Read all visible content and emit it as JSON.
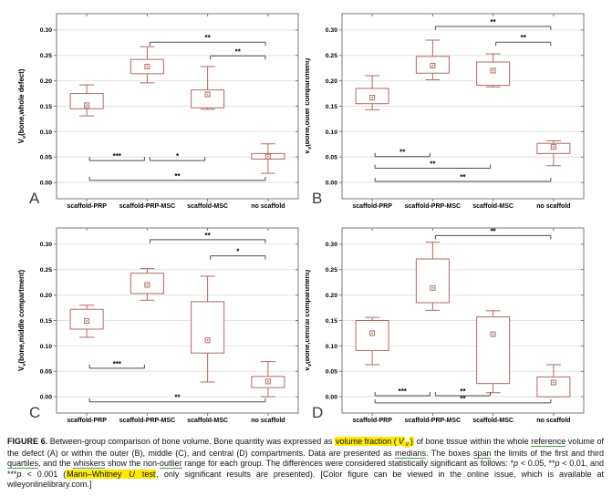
{
  "colors": {
    "box": "#b16a66",
    "grid": "#e4e4e4",
    "frame": "#7a7a7a",
    "bracket": "#4d4d4d",
    "text": "#000000",
    "highlight": "#ffe900",
    "underline": "#3da144",
    "panel_letter": "#3a3a3a"
  },
  "chart_data": [
    {
      "panel": "A",
      "type": "box",
      "grid": "horizontal",
      "ylabel": {
        "base": "V",
        "sub": "v",
        "rest": "(bone,whole defect)"
      },
      "categories": [
        "scaffold-PRP",
        "scaffold-PRP-MSC",
        "scaffold-MSC",
        "no scaffold"
      ],
      "ylim": [
        -0.032,
        0.332
      ],
      "yticks": [
        0.0,
        0.05,
        0.1,
        0.15,
        0.2,
        0.25,
        0.3
      ],
      "median_marker": "open-square",
      "boxes": [
        {
          "whisker_low": 0.131,
          "q1": 0.145,
          "median": 0.152,
          "q3": 0.175,
          "whisker_high": 0.192
        },
        {
          "whisker_low": 0.196,
          "q1": 0.214,
          "median": 0.228,
          "q3": 0.242,
          "whisker_high": 0.267
        },
        {
          "whisker_low": 0.144,
          "q1": 0.147,
          "median": 0.173,
          "q3": 0.182,
          "whisker_high": 0.228
        },
        {
          "whisker_low": 0.018,
          "q1": 0.046,
          "median": 0.051,
          "q3": 0.057,
          "whisker_high": 0.076
        }
      ],
      "significance": [
        {
          "from": 1,
          "to": 3,
          "y": 0.276,
          "label": "**",
          "tick": "down"
        },
        {
          "from": 2,
          "to": 3,
          "y": 0.249,
          "label": "**",
          "tick": "down"
        },
        {
          "from": 0,
          "to": 1,
          "y": 0.043,
          "label": "***",
          "tick": "up"
        },
        {
          "from": 1,
          "to": 2,
          "y": 0.043,
          "label": "*",
          "tick": "up"
        },
        {
          "from": 0,
          "to": 3,
          "y": 0.004,
          "label": "**",
          "tick": "up"
        }
      ]
    },
    {
      "panel": "B",
      "type": "box",
      "grid": "horizontal",
      "ylabel": {
        "base": "V",
        "sub": "v",
        "rest": "(bone,outer compartment)"
      },
      "categories": [
        "scaffold-PRP",
        "scaffold-PRP-MSC",
        "scaffold-MSC",
        "no scaffold"
      ],
      "ylim": [
        -0.032,
        0.332
      ],
      "yticks": [
        0.0,
        0.05,
        0.1,
        0.15,
        0.2,
        0.25,
        0.3
      ],
      "median_marker": "open-square",
      "boxes": [
        {
          "whisker_low": 0.143,
          "q1": 0.155,
          "median": 0.167,
          "q3": 0.185,
          "whisker_high": 0.21
        },
        {
          "whisker_low": 0.202,
          "q1": 0.215,
          "median": 0.23,
          "q3": 0.248,
          "whisker_high": 0.28
        },
        {
          "whisker_low": 0.188,
          "q1": 0.191,
          "median": 0.22,
          "q3": 0.237,
          "whisker_high": 0.253
        },
        {
          "whisker_low": 0.033,
          "q1": 0.057,
          "median": 0.07,
          "q3": 0.077,
          "whisker_high": 0.082
        }
      ],
      "significance": [
        {
          "from": 1,
          "to": 3,
          "y": 0.307,
          "label": "**",
          "tick": "down"
        },
        {
          "from": 2,
          "to": 3,
          "y": 0.276,
          "label": "**",
          "tick": "down"
        },
        {
          "from": 0,
          "to": 1,
          "y": 0.051,
          "label": "**",
          "tick": "up"
        },
        {
          "from": 0,
          "to": 2,
          "y": 0.028,
          "label": "**",
          "tick": "up"
        },
        {
          "from": 0,
          "to": 3,
          "y": 0.002,
          "label": "**",
          "tick": "up"
        }
      ]
    },
    {
      "panel": "C",
      "type": "box",
      "grid": "horizontal",
      "ylabel": {
        "base": "V",
        "sub": "v",
        "rest": "(bone,middle compartment)"
      },
      "categories": [
        "scaffold-PRP",
        "scaffold-PRP-MSC",
        "scaffold-MSC",
        "no scaffold"
      ],
      "ylim": [
        -0.032,
        0.332
      ],
      "yticks": [
        0.0,
        0.05,
        0.1,
        0.15,
        0.2,
        0.25,
        0.3
      ],
      "median_marker": "open-square",
      "boxes": [
        {
          "whisker_low": 0.117,
          "q1": 0.133,
          "median": 0.149,
          "q3": 0.172,
          "whisker_high": 0.18
        },
        {
          "whisker_low": 0.19,
          "q1": 0.203,
          "median": 0.22,
          "q3": 0.243,
          "whisker_high": 0.252
        },
        {
          "whisker_low": 0.029,
          "q1": 0.086,
          "median": 0.111,
          "q3": 0.187,
          "whisker_high": 0.237
        },
        {
          "whisker_low": 0.0,
          "q1": 0.018,
          "median": 0.03,
          "q3": 0.04,
          "whisker_high": 0.069
        }
      ],
      "significance": [
        {
          "from": 1,
          "to": 3,
          "y": 0.309,
          "label": "**",
          "tick": "down"
        },
        {
          "from": 2,
          "to": 3,
          "y": 0.277,
          "label": "*",
          "tick": "down"
        },
        {
          "from": 0,
          "to": 1,
          "y": 0.056,
          "label": "***",
          "tick": "up"
        },
        {
          "from": 0,
          "to": 3,
          "y": -0.01,
          "label": "**",
          "tick": "up"
        }
      ]
    },
    {
      "panel": "D",
      "type": "box",
      "grid": "horizontal",
      "ylabel": {
        "base": "V",
        "sub": "v",
        "rest": "(bone,central compartment)"
      },
      "categories": [
        "scaffold-PRP",
        "scaffold-PRP-MSC",
        "scaffold-MSC",
        "no scaffold"
      ],
      "ylim": [
        -0.032,
        0.332
      ],
      "yticks": [
        0.0,
        0.05,
        0.1,
        0.15,
        0.2,
        0.25,
        0.3
      ],
      "median_marker": "open-square",
      "boxes": [
        {
          "whisker_low": 0.063,
          "q1": 0.091,
          "median": 0.125,
          "q3": 0.15,
          "whisker_high": 0.156
        },
        {
          "whisker_low": 0.17,
          "q1": 0.185,
          "median": 0.214,
          "q3": 0.271,
          "whisker_high": 0.304
        },
        {
          "whisker_low": 0.008,
          "q1": 0.026,
          "median": 0.123,
          "q3": 0.157,
          "whisker_high": 0.169
        },
        {
          "whisker_low": 0.0,
          "q1": 0.0,
          "median": 0.028,
          "q3": 0.039,
          "whisker_high": 0.063
        }
      ],
      "significance": [
        {
          "from": 1,
          "to": 3,
          "y": 0.317,
          "label": "**",
          "tick": "down"
        },
        {
          "from": 0,
          "to": 1,
          "y": 0.002,
          "label": "***",
          "tick": "up"
        },
        {
          "from": 1,
          "to": 2,
          "y": 0.002,
          "label": "**",
          "tick": "up"
        },
        {
          "from": 0,
          "to": 3,
          "y": -0.012,
          "label": "**",
          "tick": "up"
        }
      ]
    }
  ],
  "caption": {
    "segments": [
      {
        "text": "FIGURE 6.",
        "bold": true
      },
      {
        "text": " Between-group comparison of bone volume. Bone quantity was expressed as "
      },
      {
        "text": "volume fraction (",
        "highlight": true
      },
      {
        "text": "V",
        "highlight": true,
        "italic": true
      },
      {
        "text": "v",
        "highlight": true,
        "italic": true,
        "sub": true
      },
      {
        "text": ")",
        "highlight": true
      },
      {
        "text": " of bone tissue within the whole "
      },
      {
        "text": "reference",
        "underline": true
      },
      {
        "text": " volume of the defect (A) or within the outer (B), middle (C), and central (D) compartments. Data are presented as "
      },
      {
        "text": "medians",
        "underline": true
      },
      {
        "text": ". The boxes "
      },
      {
        "text": "span",
        "underline": true
      },
      {
        "text": " the limits of the first and third "
      },
      {
        "text": "quartiles",
        "underline": true
      },
      {
        "text": ", and the "
      },
      {
        "text": "whiskers",
        "underline": true
      },
      {
        "text": " show the non-"
      },
      {
        "text": "outlier",
        "underline": true
      },
      {
        "text": " range for each group. The differences were considered statistically significant as follows: *"
      },
      {
        "text": "p",
        "italic": true
      },
      {
        "text": " < 0.05, **"
      },
      {
        "text": "p",
        "italic": true
      },
      {
        "text": " < 0.01, and ***"
      },
      {
        "text": "p",
        "italic": true
      },
      {
        "text": " < 0.001 ("
      },
      {
        "text": "Mann–Whitney ",
        "highlight": true
      },
      {
        "text": "U",
        "highlight": true,
        "italic": true
      },
      {
        "text": " test",
        "highlight": true
      },
      {
        "text": ", only significant results are presented). [Color figure can be viewed in the online issue, which is available at wileyonlinelibrary.com.]"
      }
    ]
  }
}
